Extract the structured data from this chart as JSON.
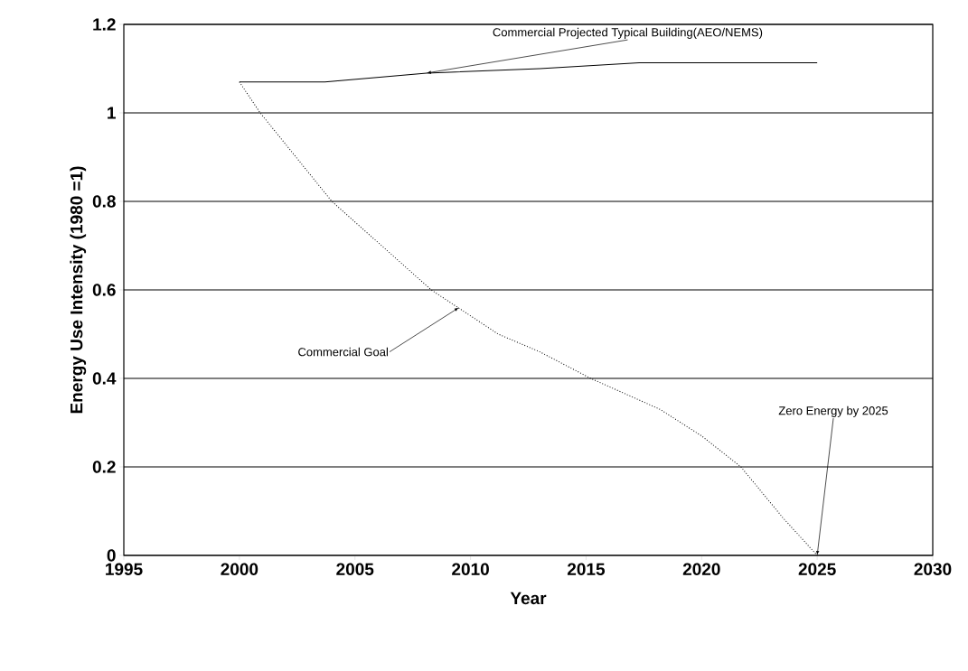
{
  "chart_data": {
    "type": "line",
    "xlabel": "Year",
    "ylabel": "Energy Use Intensity (1980 =1)",
    "xlim": [
      1995,
      2030
    ],
    "xticks": [
      1995,
      2000,
      2005,
      2010,
      2015,
      2020,
      2025,
      2030
    ],
    "ylim": [
      0,
      1.2
    ],
    "yticks": [
      0,
      0.2,
      0.4,
      0.6,
      0.8,
      1,
      1.2
    ],
    "grid": "y",
    "marker": "none",
    "series": [
      {
        "color": "#000000",
        "line_style": "solid",
        "x": [
          2000,
          2003.7,
          2008.1,
          2013,
          2017.3,
          2025
        ],
        "values": [
          1.07,
          1.07,
          1.09,
          1.1,
          1.113,
          1.113
        ]
      },
      {
        "color": "#000000",
        "line_style": "dotted",
        "x": [
          2000,
          2000.9,
          2004,
          2008.3,
          2011.2,
          2013,
          2015.2,
          2018.2,
          2020,
          2021.7,
          2023.5,
          2025
        ],
        "values": [
          1.07,
          1,
          0.8,
          0.6,
          0.5,
          0.46,
          0.4,
          0.33,
          0.27,
          0.2,
          0.086,
          0
        ]
      }
    ],
    "annotations": [
      {
        "text": "Commercial Projected Typical Building(AEO/NEMS)",
        "x": 2008.1,
        "y": 1.09
      },
      {
        "text": "Commercial Goal",
        "x": 2009.5,
        "y": 0.56
      },
      {
        "text": "Zero Energy by 2025",
        "x": 2025,
        "y": 0
      }
    ]
  }
}
